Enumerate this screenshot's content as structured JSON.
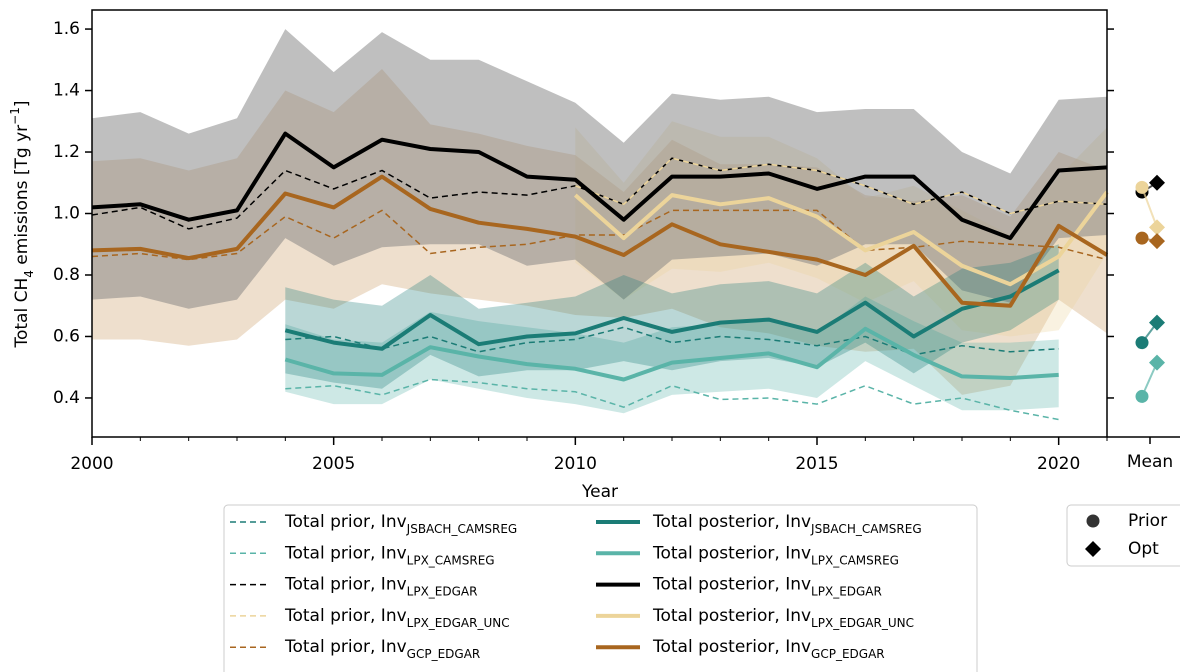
{
  "chart_data": {
    "type": "line",
    "xlabel": "Year",
    "ylabel": {
      "prefix": "Total CH",
      "sub": "4",
      "mid": " emissions [Tg yr",
      "sup": "−1",
      "suffix": "]"
    },
    "xlim": [
      2000,
      2021
    ],
    "xticks": [
      2000,
      2005,
      2010,
      2015,
      2020
    ],
    "xminorticks": [
      2001,
      2002,
      2003,
      2004,
      2006,
      2007,
      2008,
      2009,
      2011,
      2012,
      2013,
      2014,
      2016,
      2017,
      2018,
      2019,
      2021
    ],
    "ylim": [
      0.273,
      1.662
    ],
    "yticks": [
      0.4,
      0.6,
      0.8,
      {
        "value": 1,
        "label": "1.0"
      },
      1.2,
      1.4,
      1.6
    ],
    "legend_prior_text": "Total prior, Inv",
    "legend_posterior_text": "Total posterior, Inv",
    "mean_label": "Mean",
    "mean_legend": [
      "Prior",
      "Opt"
    ],
    "series": [
      {
        "name": "JSBACH_CAMSREG",
        "color": "#1b7c76",
        "band_color": "#1b7c76",
        "x": [
          2004,
          2005,
          2006,
          2007,
          2008,
          2009,
          2010,
          2011,
          2012,
          2013,
          2014,
          2015,
          2016,
          2017,
          2018,
          2019,
          2020
        ],
        "prior": [
          0.59,
          0.6,
          0.56,
          0.6,
          0.55,
          0.58,
          0.59,
          0.63,
          0.58,
          0.6,
          0.59,
          0.57,
          0.6,
          0.54,
          0.57,
          0.55,
          0.56
        ],
        "posterior": [
          0.62,
          0.58,
          0.56,
          0.67,
          0.575,
          0.6,
          0.61,
          0.66,
          0.615,
          0.645,
          0.655,
          0.615,
          0.71,
          0.6,
          0.69,
          0.73,
          0.815
        ],
        "band_high": [
          0.76,
          0.72,
          0.7,
          0.8,
          0.69,
          0.71,
          0.73,
          0.8,
          0.74,
          0.77,
          0.78,
          0.74,
          0.84,
          0.73,
          0.82,
          0.84,
          0.9
        ],
        "band_low": [
          0.48,
          0.45,
          0.43,
          0.54,
          0.47,
          0.49,
          0.49,
          0.52,
          0.49,
          0.52,
          0.53,
          0.5,
          0.58,
          0.48,
          0.58,
          0.62,
          0.72
        ],
        "mean_prior": 0.58,
        "mean_opt": 0.645
      },
      {
        "name": "LPX_CAMSREG",
        "color": "#5ab4a8",
        "band_color": "#5ab4a8",
        "x": [
          2004,
          2005,
          2006,
          2007,
          2008,
          2009,
          2010,
          2011,
          2012,
          2013,
          2014,
          2015,
          2016,
          2017,
          2018,
          2019,
          2020
        ],
        "prior": [
          0.43,
          0.44,
          0.41,
          0.46,
          0.45,
          0.43,
          0.42,
          0.37,
          0.44,
          0.395,
          0.4,
          0.38,
          0.44,
          0.38,
          0.4,
          0.36,
          0.33
        ],
        "posterior": [
          0.525,
          0.48,
          0.475,
          0.565,
          0.535,
          0.51,
          0.495,
          0.46,
          0.515,
          0.53,
          0.545,
          0.5,
          0.625,
          0.54,
          0.47,
          0.465,
          0.475
        ],
        "band_high": [
          0.64,
          0.59,
          0.58,
          0.68,
          0.65,
          0.63,
          0.61,
          0.58,
          0.63,
          0.64,
          0.65,
          0.61,
          0.73,
          0.65,
          0.58,
          0.58,
          0.59
        ],
        "band_low": [
          0.42,
          0.38,
          0.38,
          0.46,
          0.43,
          0.4,
          0.38,
          0.35,
          0.41,
          0.42,
          0.43,
          0.4,
          0.52,
          0.44,
          0.36,
          0.36,
          0.37
        ],
        "mean_prior": 0.405,
        "mean_opt": 0.515
      },
      {
        "name": "LPX_EDGAR",
        "color": "#000000",
        "band_color": "#808080",
        "x": [
          2000,
          2001,
          2002,
          2003,
          2004,
          2005,
          2006,
          2007,
          2008,
          2009,
          2010,
          2011,
          2012,
          2013,
          2014,
          2015,
          2016,
          2017,
          2018,
          2019,
          2020,
          2021
        ],
        "prior": [
          0.995,
          1.02,
          0.95,
          0.985,
          1.14,
          1.08,
          1.14,
          1.05,
          1.07,
          1.06,
          1.09,
          1.03,
          1.18,
          1.14,
          1.16,
          1.14,
          1.09,
          1.03,
          1.07,
          1.0,
          1.04,
          1.03
        ],
        "posterior": [
          1.02,
          1.03,
          0.98,
          1.01,
          1.26,
          1.15,
          1.24,
          1.21,
          1.2,
          1.12,
          1.11,
          0.98,
          1.12,
          1.12,
          1.13,
          1.08,
          1.12,
          1.12,
          0.98,
          0.92,
          1.14,
          1.15
        ],
        "band_high": [
          1.31,
          1.33,
          1.26,
          1.31,
          1.6,
          1.46,
          1.59,
          1.5,
          1.5,
          1.43,
          1.36,
          1.23,
          1.39,
          1.37,
          1.38,
          1.33,
          1.34,
          1.34,
          1.2,
          1.13,
          1.37,
          1.38
        ],
        "band_low": [
          0.72,
          0.73,
          0.69,
          0.72,
          0.92,
          0.83,
          0.89,
          0.9,
          0.9,
          0.83,
          0.85,
          0.72,
          0.85,
          0.86,
          0.87,
          0.83,
          0.9,
          0.9,
          0.75,
          0.71,
          0.92,
          0.93
        ],
        "mean_prior": 1.07,
        "mean_opt": 1.1
      },
      {
        "name": "LPX_EDGAR_UNC",
        "color": "#ecd49a",
        "band_color": "#ecd49a",
        "x": [
          2010,
          2011,
          2012,
          2013,
          2014,
          2015,
          2016,
          2017,
          2018,
          2019,
          2020,
          2021
        ],
        "prior": [
          1.09,
          1.03,
          1.18,
          1.14,
          1.16,
          1.14,
          1.09,
          1.03,
          1.07,
          1.0,
          1.04,
          1.03
        ],
        "posterior": [
          1.06,
          0.92,
          1.06,
          1.03,
          1.05,
          0.99,
          0.88,
          0.94,
          0.83,
          0.77,
          0.86,
          1.07
        ],
        "band_high": [
          1.28,
          1.1,
          1.3,
          1.25,
          1.25,
          1.18,
          1.05,
          1.09,
          1.01,
          0.93,
          1.12,
          1.28
        ],
        "band_low": [
          0.84,
          0.72,
          0.82,
          0.81,
          0.84,
          0.79,
          0.71,
          0.78,
          0.62,
          0.6,
          0.62,
          0.87
        ],
        "mean_prior": 1.085,
        "mean_opt": 0.955
      },
      {
        "name": "GCP_EDGAR",
        "color": "#a8661f",
        "band_color": "#c8945a",
        "x": [
          2000,
          2001,
          2002,
          2003,
          2004,
          2005,
          2006,
          2007,
          2008,
          2009,
          2010,
          2011,
          2012,
          2013,
          2014,
          2015,
          2016,
          2017,
          2018,
          2019,
          2020,
          2021
        ],
        "prior": [
          0.86,
          0.87,
          0.85,
          0.87,
          0.99,
          0.92,
          1.01,
          0.87,
          0.89,
          0.9,
          0.93,
          0.93,
          1.01,
          1.01,
          1.01,
          1.01,
          0.88,
          0.89,
          0.91,
          0.9,
          0.89,
          0.85
        ],
        "posterior": [
          0.88,
          0.885,
          0.855,
          0.885,
          1.065,
          1.02,
          1.12,
          1.015,
          0.97,
          0.95,
          0.925,
          0.865,
          0.965,
          0.9,
          0.875,
          0.85,
          0.8,
          0.895,
          0.71,
          0.7,
          0.96,
          0.865
        ],
        "band_high": [
          1.17,
          1.18,
          1.14,
          1.18,
          1.4,
          1.33,
          1.47,
          1.29,
          1.26,
          1.22,
          1.19,
          1.07,
          1.24,
          1.16,
          1.16,
          1.15,
          1.06,
          1.04,
          1.06,
          0.99,
          1.2,
          1.14
        ],
        "band_low": [
          0.59,
          0.59,
          0.57,
          0.59,
          0.72,
          0.69,
          0.77,
          0.74,
          0.72,
          0.7,
          0.67,
          0.66,
          0.69,
          0.63,
          0.61,
          0.57,
          0.55,
          0.56,
          0.41,
          0.44,
          0.72,
          0.61
        ],
        "mean_prior": 0.92,
        "mean_opt": 0.91
      }
    ]
  }
}
